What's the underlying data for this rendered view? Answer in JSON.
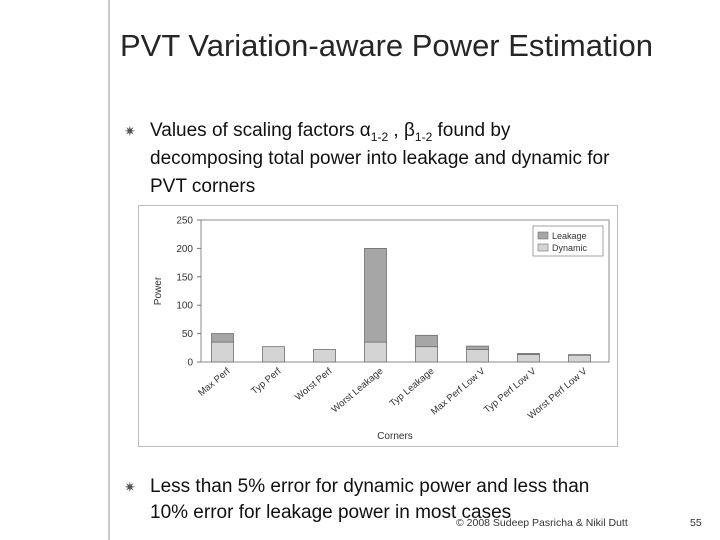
{
  "slide": {
    "title": "PVT Variation-aware Power Estimation",
    "bullet1": {
      "line1_prefix": "Values of scaling factors α",
      "alpha_sub": "1-2",
      "line1_mid": " , β",
      "beta_sub": "1-2",
      "line1_suffix": " found by",
      "line2": "decomposing total power into leakage and dynamic for",
      "line3": "PVT corners"
    },
    "bullet2": {
      "line1": "Less than 5% error for dynamic power and less than",
      "line2": "10% error for leakage power in most cases"
    },
    "footer": "© 2008 Sudeep Pasricha & Nikil Dutt",
    "page_number": "55"
  },
  "chart_data": {
    "type": "bar",
    "xlabel": "Corners",
    "ylabel": "Power",
    "ylim": [
      0,
      250
    ],
    "yticks": [
      0,
      50,
      100,
      150,
      200,
      250
    ],
    "categories": [
      "Max Perf",
      "Typ Perf",
      "Worst Perf",
      "Worst Leakage",
      "Typ Leakage",
      "Max Perf Low V",
      "Typ Perf Low V",
      "Worst Perf Low V"
    ],
    "series": [
      {
        "name": "Dynamic",
        "color": "#d4d4d4",
        "values": [
          35,
          27,
          22,
          35,
          27,
          22,
          13,
          12
        ]
      },
      {
        "name": "Leakage",
        "color": "#a6a6a6",
        "values": [
          15,
          0,
          0,
          165,
          20,
          6,
          2,
          1
        ]
      }
    ],
    "stacked": true,
    "legend_position": "top-right",
    "grid": false
  }
}
